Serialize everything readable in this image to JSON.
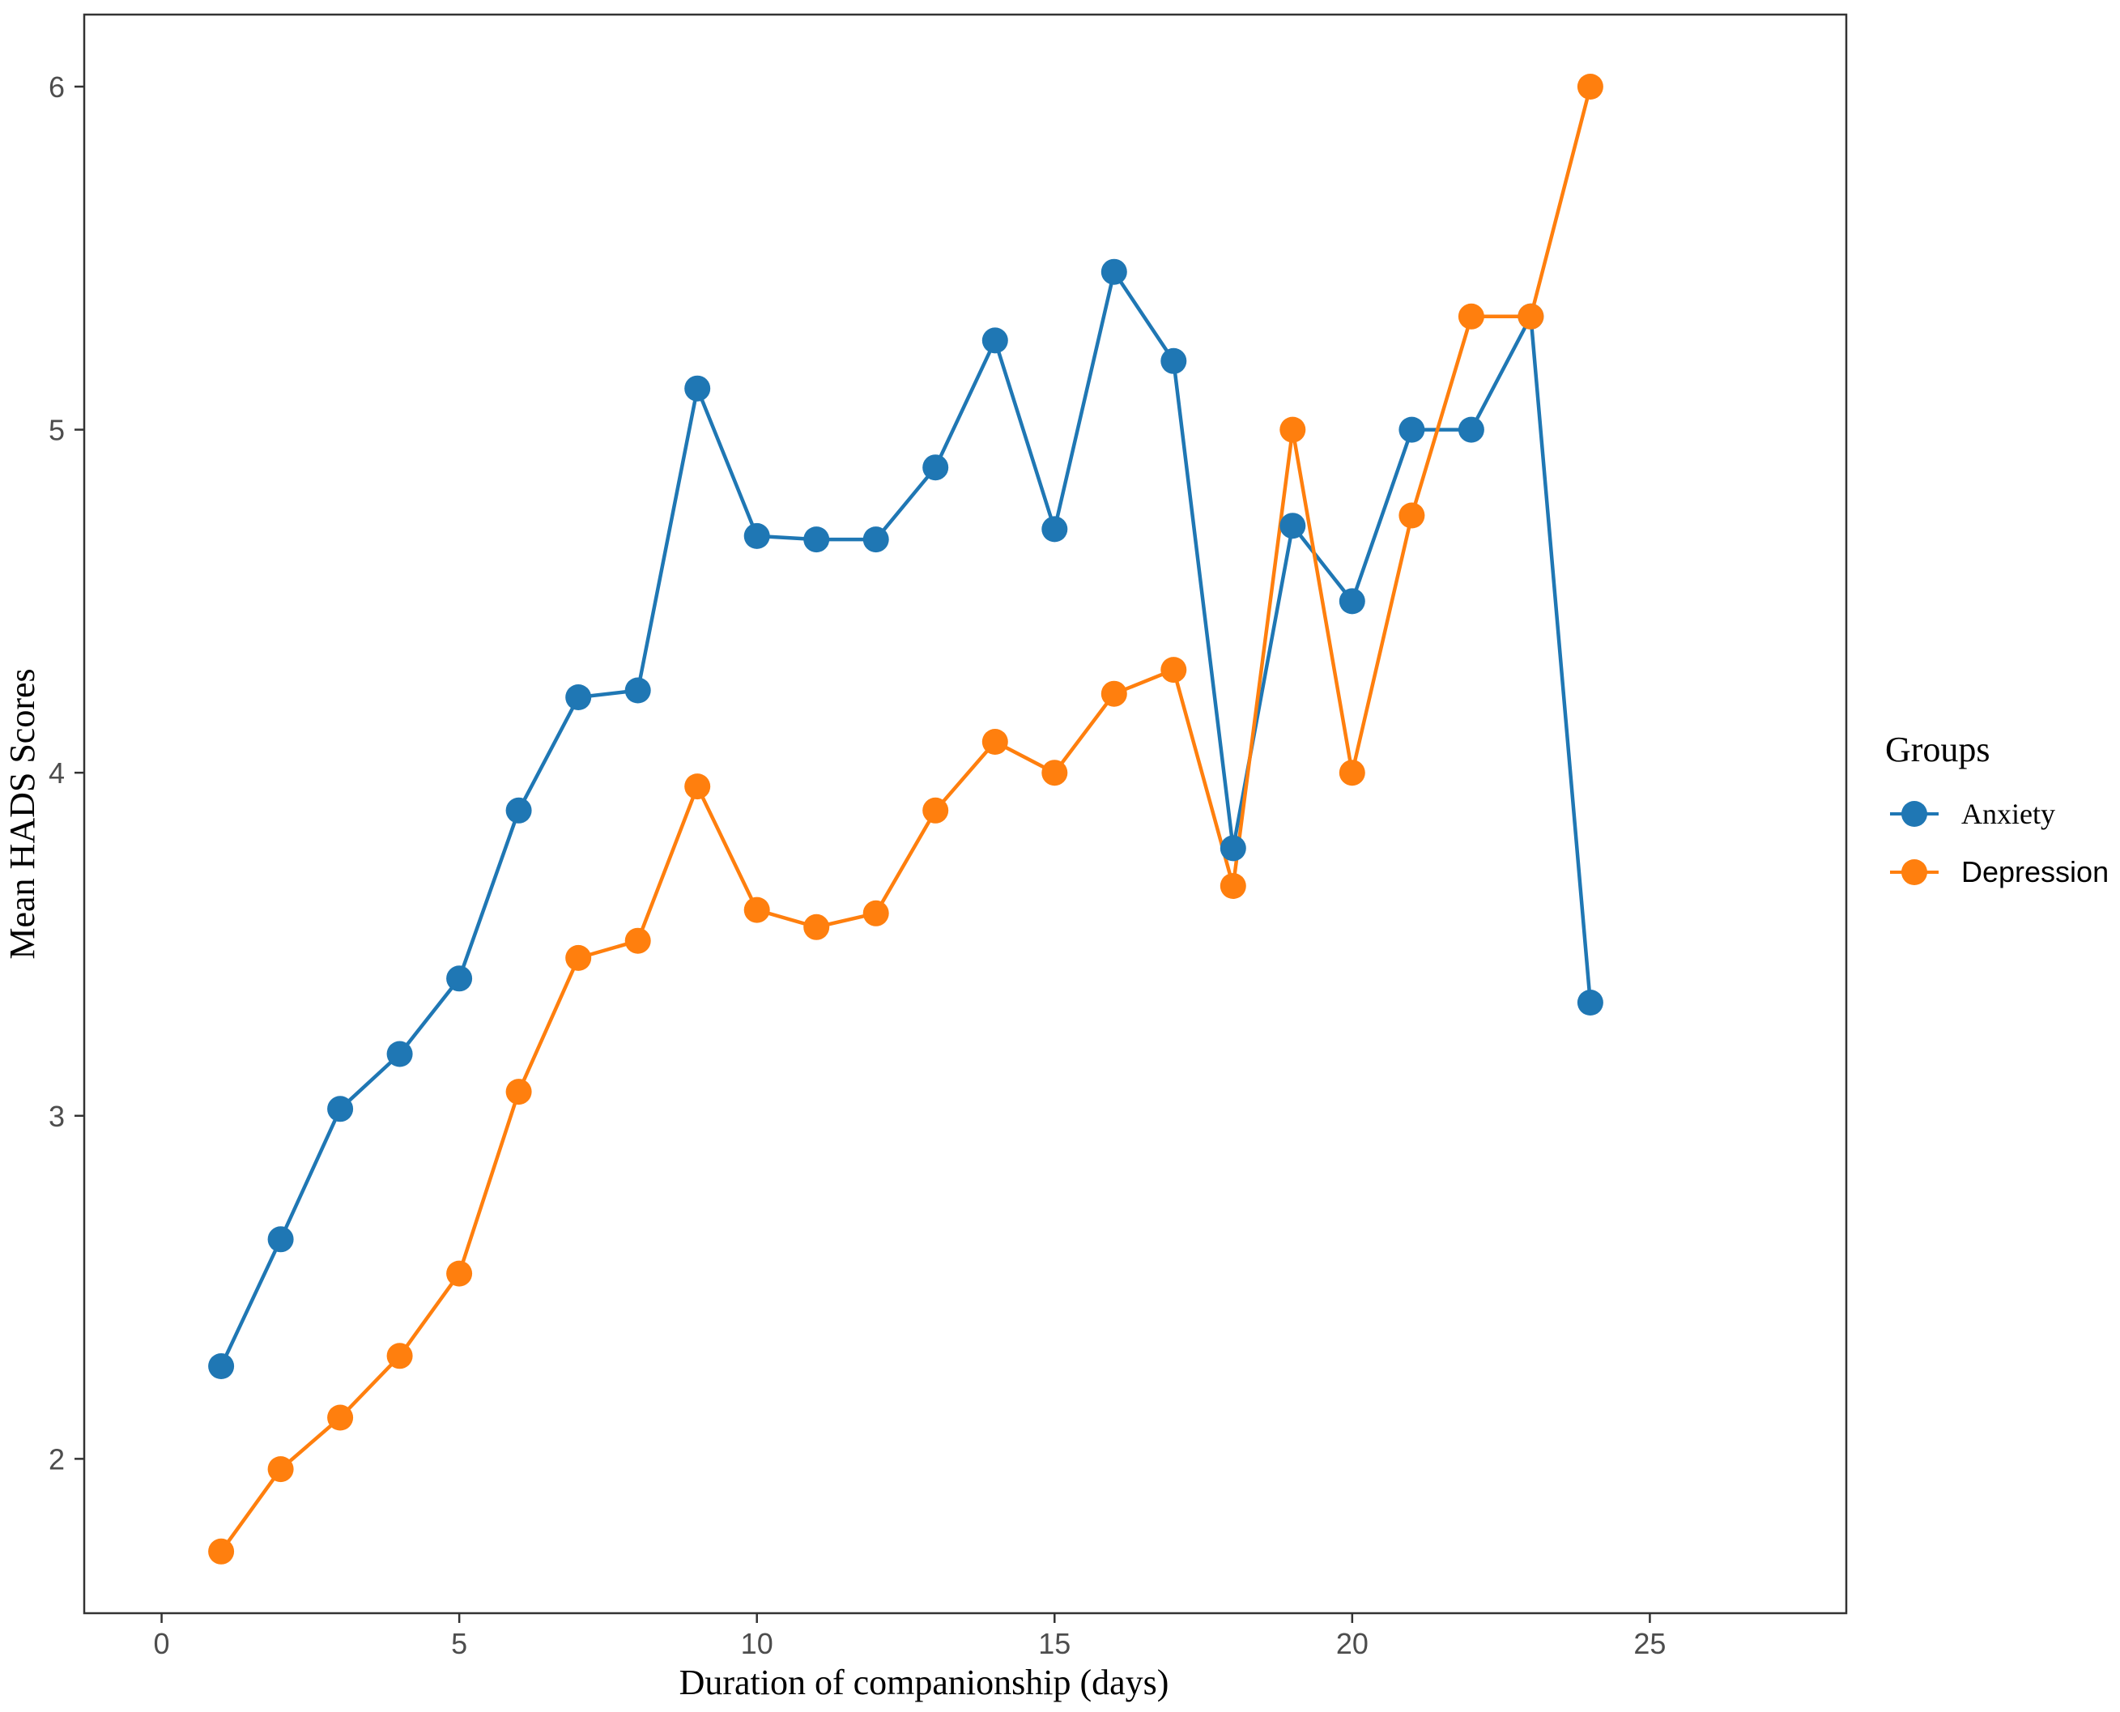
{
  "chart_data": {
    "type": "line",
    "xlabel": "Duration of companionship (days)",
    "ylabel": "Mean HADS Scores",
    "xlim": [
      -1.3,
      28.3
    ],
    "ylim": [
      1.55,
      6.21
    ],
    "xticks": [
      0,
      5,
      10,
      15,
      20,
      25
    ],
    "yticks": [
      2,
      3,
      4,
      5,
      6
    ],
    "grid": false,
    "legend": {
      "title": "Groups",
      "position": "right"
    },
    "x": [
      1,
      2,
      3,
      4,
      5,
      6,
      7,
      8,
      9,
      10,
      11,
      12,
      13,
      14,
      15,
      16,
      17,
      18,
      19,
      20,
      21,
      22,
      23,
      24
    ],
    "series": [
      {
        "name": "Anxiety",
        "color": "#1f77b4",
        "values": [
          2.27,
          2.64,
          3.02,
          3.18,
          3.4,
          3.89,
          4.22,
          4.24,
          5.12,
          4.69,
          4.68,
          4.68,
          4.89,
          5.26,
          4.71,
          5.46,
          5.2,
          3.78,
          4.72,
          4.5,
          5.0,
          5.0,
          5.33,
          3.33
        ]
      },
      {
        "name": "Depression",
        "color": "#ff7f0e",
        "values": [
          1.73,
          1.97,
          2.12,
          2.3,
          2.54,
          3.07,
          3.46,
          3.51,
          3.96,
          3.6,
          3.55,
          3.59,
          3.89,
          4.09,
          4.0,
          4.23,
          4.3,
          3.67,
          5.0,
          4.0,
          4.75,
          5.33,
          5.33,
          6.0
        ]
      }
    ]
  }
}
